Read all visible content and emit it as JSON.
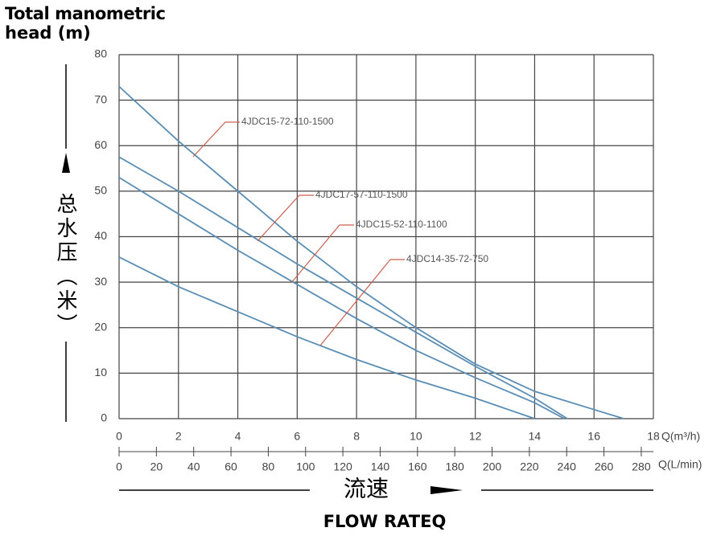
{
  "chart_data": {
    "type": "line",
    "ylabel": [
      "Total manometric",
      "head (m)"
    ],
    "ylabel_cn": "总水压（米）",
    "xlabel_cn": "流速",
    "xlabel": "FLOW RATEQ",
    "xunit": "Q(m³/h)",
    "x2unit": "Q(L/min)",
    "xlim": [
      0,
      18
    ],
    "xticks": [
      0,
      2,
      4,
      6,
      8,
      10,
      12,
      14,
      16,
      18
    ],
    "x2lim": [
      0,
      286.5
    ],
    "x2ticks": [
      0,
      20,
      40,
      60,
      80,
      100,
      120,
      140,
      160,
      180,
      200,
      220,
      240,
      260,
      280
    ],
    "ylim": [
      0,
      80
    ],
    "yticks": [
      0,
      10,
      20,
      30,
      40,
      50,
      60,
      70,
      80
    ],
    "grid": true,
    "series": [
      {
        "name": "4JDC15-72-110-1500",
        "color": "#5a8db3",
        "x": [
          0,
          2,
          4,
          6,
          8,
          10,
          12,
          14,
          16,
          17
        ],
        "values": [
          73,
          61,
          50,
          39,
          29,
          20,
          12,
          6,
          2,
          0
        ]
      },
      {
        "name": "4JDC17-57-110-1500",
        "color": "#5a8db3",
        "x": [
          0,
          2,
          4,
          6,
          8,
          10,
          12,
          14,
          15.1
        ],
        "values": [
          57.5,
          50,
          42,
          34,
          26.5,
          19,
          11.5,
          4.5,
          0
        ]
      },
      {
        "name": "4JDC15-52-110-1100",
        "color": "#5a8db3",
        "x": [
          0,
          2,
          4,
          6,
          8,
          10,
          12,
          14,
          15
        ],
        "values": [
          53,
          45,
          37,
          29.5,
          22,
          15,
          9,
          3.5,
          0
        ]
      },
      {
        "name": "4JDC14-35-72-750",
        "color": "#5a8db3",
        "x": [
          0,
          2,
          4,
          6,
          8,
          10,
          12,
          14
        ],
        "values": [
          35.5,
          29,
          23.5,
          18,
          13,
          8.5,
          4.5,
          0
        ]
      }
    ]
  }
}
